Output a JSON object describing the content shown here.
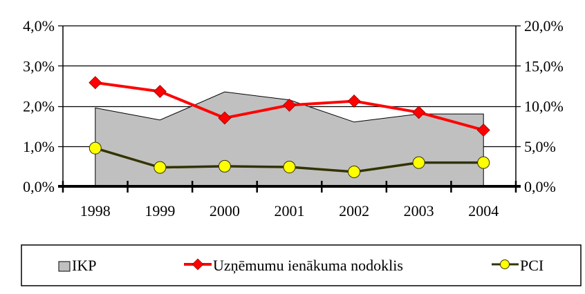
{
  "chart_data": {
    "type": "combo",
    "title": "",
    "xlabel": "",
    "ylabel": "",
    "y2label": "",
    "categories": [
      "1998",
      "1999",
      "2000",
      "2001",
      "2002",
      "2003",
      "2004"
    ],
    "series": [
      {
        "name": "IKP",
        "type": "area",
        "axis": "left",
        "color": "#C0C0C0",
        "stroke": "#000000",
        "values": [
          1.95,
          1.65,
          2.35,
          2.15,
          1.6,
          1.8,
          1.8
        ]
      },
      {
        "name": "Uzņēmumu ienākuma nodoklis",
        "type": "line",
        "axis": "right",
        "color": "#FF0000",
        "marker": "diamond",
        "values": [
          12.9,
          11.8,
          8.5,
          10.1,
          10.6,
          9.2,
          7.0
        ]
      },
      {
        "name": "PCI",
        "type": "line",
        "axis": "left",
        "color": "#333300",
        "marker": "circle",
        "marker_color": "#FFFF00",
        "values": [
          0.95,
          0.47,
          0.5,
          0.48,
          0.36,
          0.59,
          0.59
        ]
      }
    ],
    "y_axis_left": {
      "ylim": [
        0,
        4
      ],
      "ticks": [
        0,
        1,
        2,
        3,
        4
      ],
      "tick_labels": [
        "0,0%",
        "1,0%",
        "2,0%",
        "3,0%",
        "4,0%"
      ]
    },
    "y_axis_right": {
      "ylim": [
        0,
        20
      ],
      "ticks": [
        0,
        5,
        10,
        15,
        20
      ],
      "tick_labels": [
        "0,0%",
        "5,0%",
        "10,0%",
        "15,0%",
        "20,0%"
      ]
    },
    "grid": true,
    "legend_position": "bottom"
  },
  "legend": {
    "items": [
      {
        "label": "IKP"
      },
      {
        "label": "Uzņēmumu ienākuma nodoklis"
      },
      {
        "label": "PCI"
      }
    ]
  }
}
